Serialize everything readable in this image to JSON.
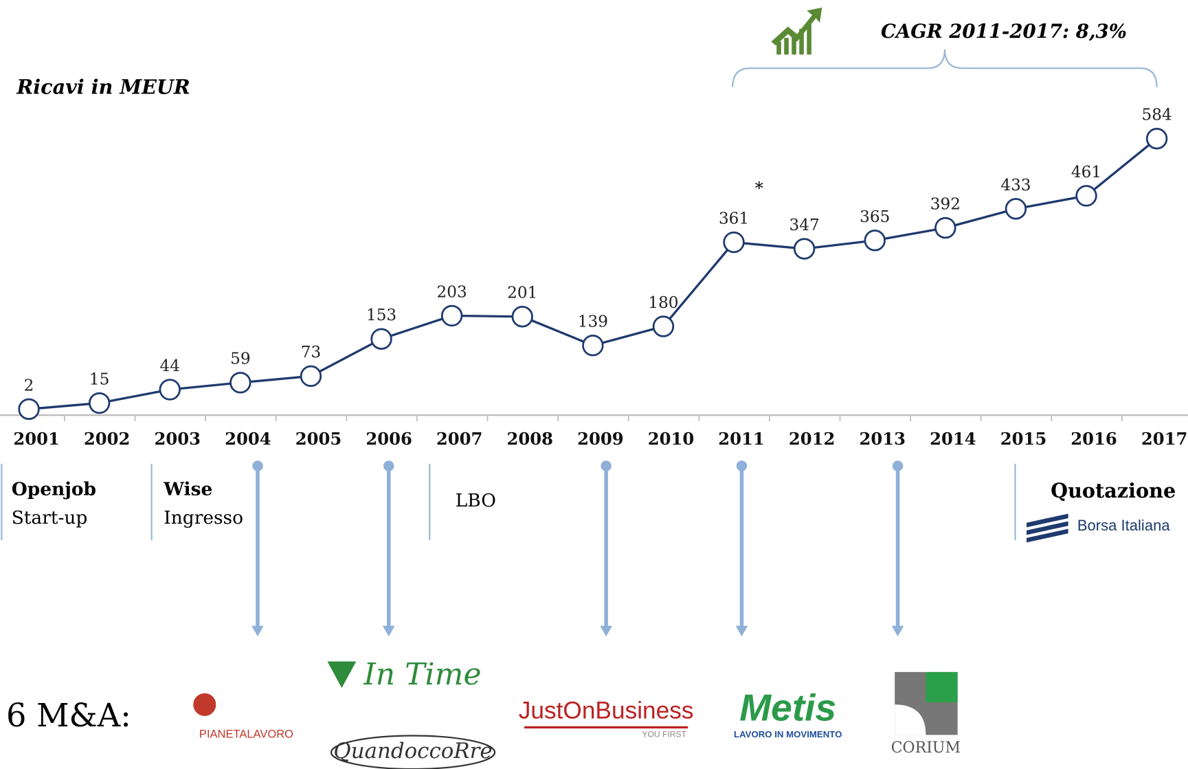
{
  "chart_data": {
    "type": "line",
    "subtitle": "Ricavi in MEUR",
    "categories": [
      "2001",
      "2002",
      "2003",
      "2004",
      "2005",
      "2006",
      "2007",
      "2008",
      "2009",
      "2010",
      "2011",
      "2012",
      "2013",
      "2014",
      "2015",
      "2016",
      "2017"
    ],
    "values": [
      2,
      15,
      44,
      59,
      73,
      153,
      203,
      201,
      139,
      180,
      361,
      347,
      365,
      392,
      433,
      461,
      584
    ],
    "color": "#1f3a6e",
    "annotations": {
      "cagr": "CAGR 2011-2017: 8,3%",
      "note": "*"
    }
  },
  "milestones": [
    {
      "title": "Openjob",
      "text": "Start-up"
    },
    {
      "title": "Wise",
      "text": "Ingresso"
    },
    {
      "title": "LBO"
    },
    {
      "title": "Quotazione",
      "text": "Borsa Italiana"
    }
  ],
  "acquisitions": {
    "label": "6 M&A:",
    "logos": [
      "PIANETALAVORO",
      "In Time",
      "QuandoccoRre",
      "JustOnBusiness",
      "YOU FIRST",
      "Metis",
      "LAVORO IN MOVIMENTO",
      "CORIUM"
    ]
  }
}
